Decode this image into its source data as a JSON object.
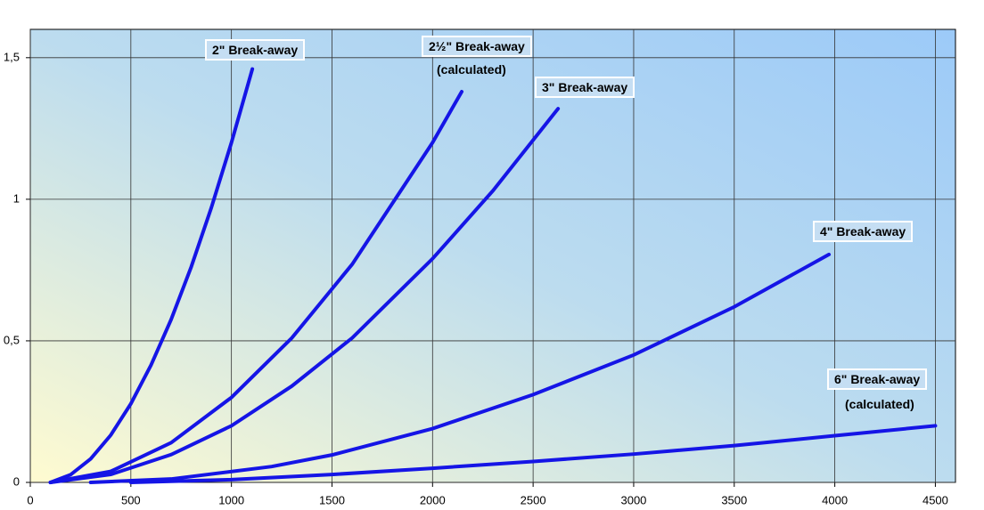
{
  "chart_data": {
    "type": "line",
    "xlim": [
      0,
      4600
    ],
    "xticks": [
      0,
      500,
      1000,
      1500,
      2000,
      2500,
      3000,
      3500,
      4000,
      4500
    ],
    "ylim": [
      0,
      1.6
    ],
    "yticks": [
      0,
      {
        "value": 0.5,
        "label": "0,5"
      },
      1,
      {
        "value": 1.5,
        "label": "1,5"
      }
    ],
    "grid": true,
    "series": [
      {
        "name": "2\" Break-away",
        "color": "#1515e6",
        "x": [
          100,
          200,
          300,
          400,
          500,
          600,
          700,
          800,
          900,
          1000,
          1104
        ],
        "values": [
          0,
          0.027,
          0.083,
          0.167,
          0.278,
          0.414,
          0.575,
          0.761,
          0.97,
          1.2,
          1.46
        ]
      },
      {
        "name": "2½\" Break-away",
        "note": "(calculated)",
        "color": "#1515e6",
        "x": [
          100,
          400,
          700,
          1000,
          1300,
          1600,
          2000,
          2145
        ],
        "values": [
          0,
          0.039,
          0.14,
          0.3,
          0.51,
          0.77,
          1.2,
          1.38
        ]
      },
      {
        "name": "3\" Break-away",
        "color": "#1515e6",
        "x": [
          100,
          400,
          700,
          1000,
          1300,
          1600,
          2000,
          2300,
          2624
        ],
        "values": [
          0,
          0.028,
          0.098,
          0.2,
          0.34,
          0.51,
          0.79,
          1.03,
          1.32
        ]
      },
      {
        "name": "4\" Break-away",
        "color": "#1515e6",
        "x": [
          300,
          700,
          1200,
          1500,
          2000,
          2500,
          3000,
          3500,
          3971
        ],
        "values": [
          0,
          0.012,
          0.056,
          0.097,
          0.19,
          0.31,
          0.45,
          0.62,
          0.805
        ]
      },
      {
        "name": "6\" Break-away",
        "note": "(calculated)",
        "color": "#1515e6",
        "x": [
          500,
          1000,
          1500,
          2000,
          2500,
          3000,
          3500,
          4000,
          4500
        ],
        "values": [
          0,
          0.01,
          0.028,
          0.05,
          0.074,
          0.1,
          0.13,
          0.165,
          0.2
        ]
      }
    ]
  }
}
